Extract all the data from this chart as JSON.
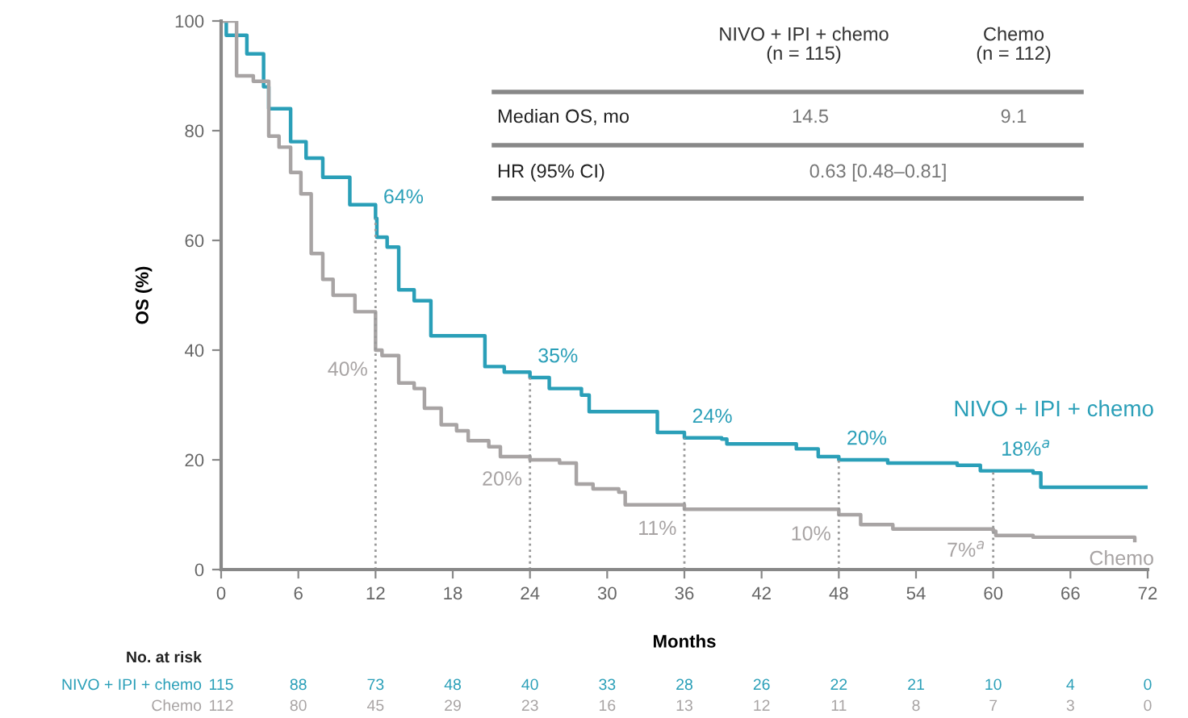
{
  "chart_data": {
    "type": "step",
    "xlabel": "Months",
    "ylabel": "OS (%)",
    "xlim": [
      0,
      72
    ],
    "xticks": [
      0,
      6,
      12,
      18,
      24,
      30,
      36,
      42,
      48,
      54,
      60,
      66,
      72
    ],
    "ylim": [
      0,
      100
    ],
    "yticks": [
      0,
      20,
      40,
      60,
      80,
      100
    ],
    "grid": false,
    "series": [
      {
        "name": "NIVO + IPI + chemo",
        "color": "#2a9fb8",
        "x": [
          0,
          0.4,
          2,
          3.3,
          3.7,
          5.4,
          6.6,
          7.9,
          10,
          12,
          12.1,
          12.9,
          13.8,
          15,
          16.3,
          18.8,
          20.5,
          22,
          24,
          25.5,
          28,
          28.6,
          32,
          33.9,
          36,
          38.9,
          39.3,
          44.7,
          46.4,
          48,
          51.8,
          57.2,
          59,
          63.1,
          63.7,
          71.9
        ],
        "values": [
          100,
          97.4,
          94,
          88,
          84,
          78,
          75,
          71.5,
          66.5,
          64,
          60.6,
          58.8,
          51,
          49,
          42.6,
          42.6,
          37,
          36,
          35,
          33,
          31.8,
          28.8,
          28.8,
          25,
          24,
          23.8,
          22.9,
          22,
          20.6,
          20,
          19.4,
          19,
          18,
          17.6,
          15,
          15
        ]
      },
      {
        "name": "Chemo",
        "color": "#a8a4a4",
        "x": [
          0,
          1.2,
          2.5,
          3.7,
          4.5,
          5.4,
          6.2,
          7,
          7.9,
          8.7,
          10.4,
          12,
          12.5,
          13.8,
          15,
          15.8,
          17.1,
          18.3,
          19.2,
          20.8,
          21.7,
          24,
          26.3,
          27.6,
          28.9,
          30.9,
          31.4,
          36,
          45.9,
          48,
          49.7,
          52.2,
          60,
          60.2,
          63.1,
          71
        ],
        "values": [
          100,
          90,
          89,
          79,
          77,
          72.4,
          68.5,
          57.6,
          52.9,
          50,
          47,
          40,
          39,
          34,
          33,
          29.4,
          26.4,
          25.3,
          23.5,
          22.4,
          20.6,
          20,
          19.4,
          15.6,
          14.7,
          14.1,
          11.8,
          11,
          11,
          10,
          8.2,
          7.4,
          7,
          6.2,
          5.9,
          5.3
        ]
      }
    ],
    "ref_lines": [
      {
        "axis": "x",
        "value": 12,
        "color": "#999999",
        "line_style": "dotted"
      },
      {
        "axis": "x",
        "value": 24,
        "color": "#999999",
        "line_style": "dotted"
      },
      {
        "axis": "x",
        "value": 36,
        "color": "#999999",
        "line_style": "dotted"
      },
      {
        "axis": "x",
        "value": 48,
        "color": "#999999",
        "line_style": "dotted"
      },
      {
        "axis": "x",
        "value": 60,
        "color": "#999999",
        "line_style": "dotted"
      }
    ],
    "annotations": [
      {
        "text": "64%",
        "x": 12,
        "y": 64
      },
      {
        "text": "40%",
        "x": 12,
        "y": 40
      },
      {
        "text": "35%",
        "x": 24,
        "y": 35
      },
      {
        "text": "20%",
        "x": 24,
        "y": 20
      },
      {
        "text": "24%",
        "x": 36,
        "y": 24
      },
      {
        "text": "11%",
        "x": 36,
        "y": 11
      },
      {
        "text": "20%",
        "x": 48,
        "y": 20
      },
      {
        "text": "10%",
        "x": 48,
        "y": 10
      },
      {
        "text": "18%$^{a}$",
        "x": 60,
        "y": 18
      },
      {
        "text": "7%$^{a}$",
        "x": 60,
        "y": 7
      },
      "NIVO + IPI + chemo\n(n = 115)",
      "Chemo\n(n = 112)",
      "Median OS, mo",
      "14.5",
      "9.1",
      "HR (95% CI)",
      "0.63 [0.48–0.81]",
      "No. at risk",
      "NIVO + IPI + chemo",
      "115 88 73 48 40 33 28 26 22 21 10 4 0",
      "Chemo",
      "112 80 45 29 23 16 13 12 11 8 7 3 0"
    ]
  }
}
